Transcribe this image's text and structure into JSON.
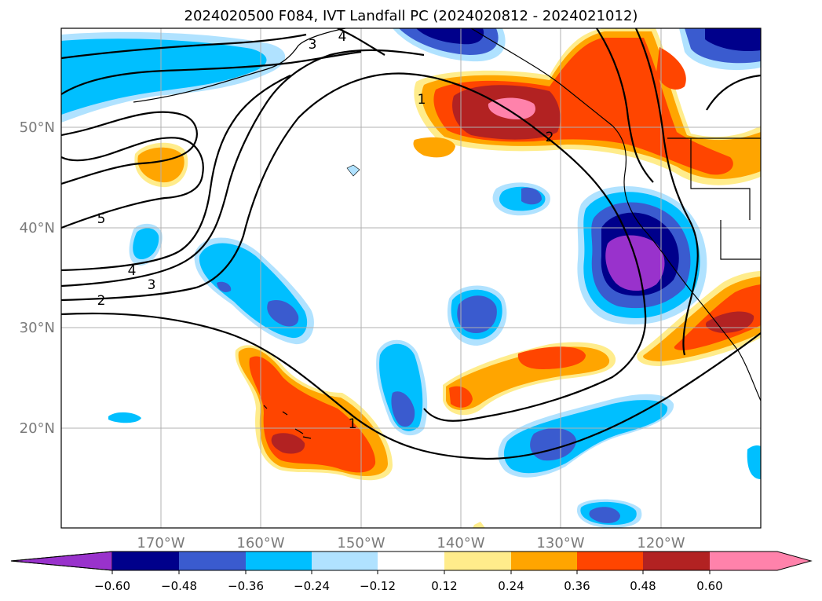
{
  "title": "2024020500 F084, IVT Landfall PC (2024020812 - 2024021012)",
  "axes": {
    "lon_labels": [
      "170°W",
      "160°W",
      "150°W",
      "140°W",
      "130°W",
      "120°W"
    ],
    "lat_labels": [
      "50°N",
      "40°N",
      "30°N",
      "20°N"
    ]
  },
  "colorbar": {
    "tick_labels": [
      "−0.60",
      "−0.48",
      "−0.36",
      "−0.24",
      "−0.12",
      "0.12",
      "0.24",
      "0.36",
      "0.48",
      "0.60"
    ],
    "colors": {
      "under": "#9932cc",
      "n060": "#00008b",
      "n048": "#3a5bcf",
      "n036": "#00bfff",
      "n024": "#b0e2ff",
      "zero": "#ffffff",
      "p012": "#ffec8b",
      "p024": "#ffa500",
      "p036": "#ff4500",
      "p048": "#b22222",
      "over": "#ff82ab"
    }
  },
  "contour_labels": [
    "1",
    "1",
    "2",
    "2",
    "3",
    "3",
    "4",
    "4",
    "5"
  ]
}
